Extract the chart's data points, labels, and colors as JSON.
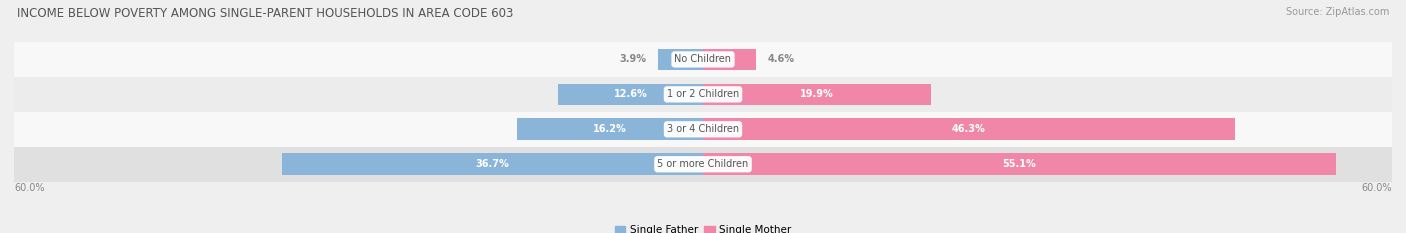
{
  "title": "INCOME BELOW POVERTY AMONG SINGLE-PARENT HOUSEHOLDS IN AREA CODE 603",
  "source": "Source: ZipAtlas.com",
  "categories": [
    "No Children",
    "1 or 2 Children",
    "3 or 4 Children",
    "5 or more Children"
  ],
  "father_values": [
    3.9,
    12.6,
    16.2,
    36.7
  ],
  "mother_values": [
    4.6,
    19.9,
    46.3,
    55.1
  ],
  "father_color": "#8ab4d8",
  "mother_color": "#f087a8",
  "label_color_outside": "#888888",
  "x_max": 60.0,
  "x_min": -60.0,
  "axis_label_left": "60.0%",
  "axis_label_right": "60.0%",
  "bar_height": 0.62,
  "background_color": "#efefef",
  "row_bg_colors": [
    "#f8f8f8",
    "#ececec",
    "#f8f8f8",
    "#e0e0e0"
  ],
  "title_fontsize": 8.5,
  "source_fontsize": 7,
  "bar_label_fontsize": 7,
  "category_fontsize": 7,
  "legend_fontsize": 7.5,
  "axis_fontsize": 7,
  "legend_father": "Single Father",
  "legend_mother": "Single Mother"
}
